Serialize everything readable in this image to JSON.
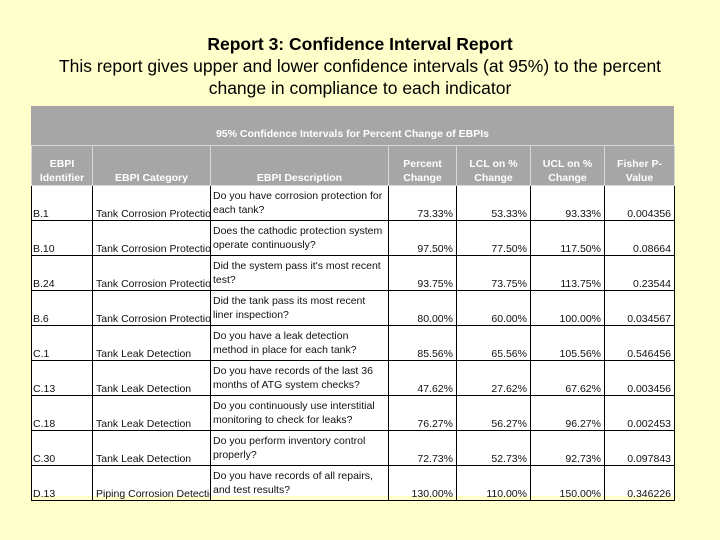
{
  "header": {
    "title": "Report 3:  Confidence Interval Report",
    "description": "This report gives upper and lower confidence intervals (at 95%) to the percent change in compliance to each indicator"
  },
  "table": {
    "banner_title": "95% Confidence Intervals for Percent Change of EBPIs",
    "columns": [
      "EBPI Identifier",
      "EBPI Category",
      "EBPI Description",
      "Percent Change",
      "LCL on % Change",
      "UCL on % Change",
      "Fisher P-Value"
    ],
    "rows": [
      [
        "B.1",
        "Tank Corrosion Protection",
        "Do you have corrosion protection for each tank?",
        "73.33%",
        "53.33%",
        "93.33%",
        "0.004356"
      ],
      [
        "B.10",
        "Tank Corrosion Protection",
        "Does the cathodic protection system operate continuously?",
        "97.50%",
        "77.50%",
        "117.50%",
        "0.08664"
      ],
      [
        "B.24",
        "Tank Corrosion Protection",
        "Did the system pass it's most recent test?",
        "93.75%",
        "73.75%",
        "113.75%",
        "0.23544"
      ],
      [
        "B.6",
        "Tank Corrosion Protection",
        "Did the tank pass its most recent liner inspection?",
        "80.00%",
        "60.00%",
        "100.00%",
        "0.034567"
      ],
      [
        "C.1",
        "Tank Leak Detection",
        "Do you have a leak detection method in place for each tank?",
        "85.56%",
        "65.56%",
        "105.56%",
        "0.546456"
      ],
      [
        "C.13",
        "Tank Leak Detection",
        "Do you have records of the last 36 months of ATG system checks?",
        "47.62%",
        "27.62%",
        "67.62%",
        "0.003456"
      ],
      [
        "C.18",
        "Tank Leak Detection",
        "Do you continuously use interstitial monitoring to check for leaks?",
        "76.27%",
        "56.27%",
        "96.27%",
        "0.002453"
      ],
      [
        "C.30",
        "Tank Leak Detection",
        "Do you perform inventory control properly?",
        "72.73%",
        "52.73%",
        "92.73%",
        "0.097843"
      ],
      [
        "D.13",
        "Piping Corrosion Detection",
        "Do you have records of all repairs, and test results?",
        "130.00%",
        "110.00%",
        "150.00%",
        "0.346226"
      ]
    ]
  },
  "colors": {
    "background": "#FFFFCC",
    "header_fill": "#A6A6A6",
    "header_text": "#FFFFFF"
  }
}
